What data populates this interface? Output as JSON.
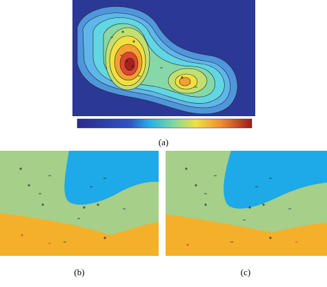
{
  "figure": {
    "captions": [
      "(a)",
      "(b)",
      "(c)"
    ]
  }
}
